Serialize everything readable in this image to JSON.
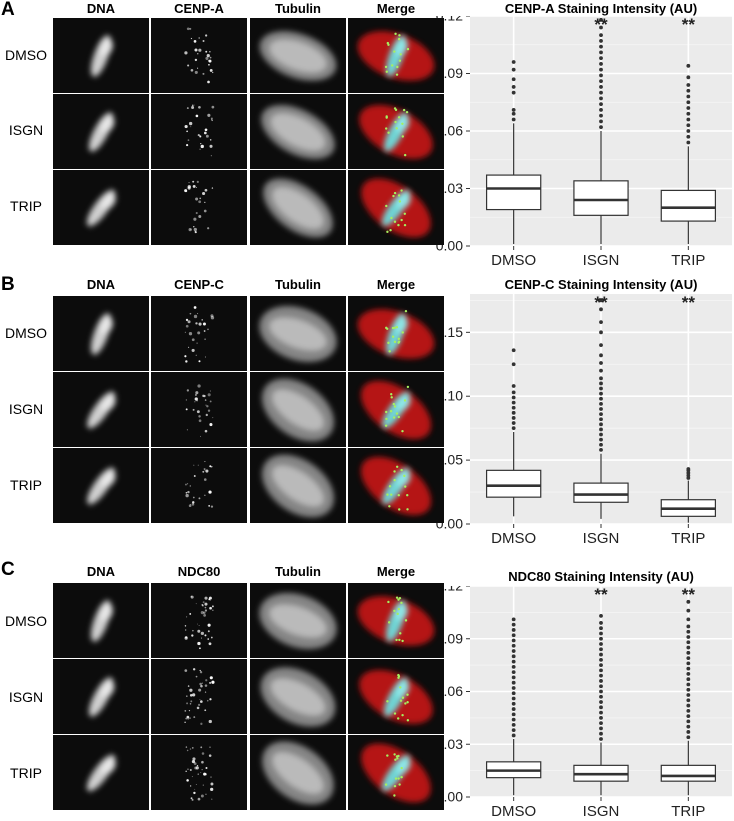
{
  "column_headers": [
    "DNA",
    "Tubulin",
    "Merge"
  ],
  "row_labels": [
    "DMSO",
    "ISGN",
    "TRIP"
  ],
  "panels": [
    {
      "letter": "A",
      "marker": "CENP-A",
      "chart_data": {
        "type": "box",
        "title": "CENP-A Staining Intensity (AU)",
        "categories": [
          "DMSO",
          "ISGN",
          "TRIP"
        ],
        "ylim": [
          0,
          0.12
        ],
        "yticks": [
          "0.00",
          "0.03",
          "0.06",
          "0.09",
          "0.12"
        ],
        "ytick_values": [
          0,
          0.03,
          0.06,
          0.09,
          0.12
        ],
        "grid": true,
        "boxes": [
          {
            "q1": 0.019,
            "median": 0.03,
            "q3": 0.037,
            "whisker_low": 0.001,
            "whisker_high": 0.064,
            "outliers": [
              0.066,
              0.069,
              0.071,
              0.08,
              0.083,
              0.087,
              0.092,
              0.096
            ]
          },
          {
            "q1": 0.016,
            "median": 0.024,
            "q3": 0.034,
            "whisker_low": 0.001,
            "whisker_high": 0.06,
            "outliers": [
              0.062,
              0.065,
              0.068,
              0.071,
              0.074,
              0.077,
              0.08,
              0.083,
              0.086,
              0.089,
              0.092,
              0.095,
              0.098,
              0.101,
              0.104,
              0.107,
              0.11,
              0.114,
              0.118
            ]
          },
          {
            "q1": 0.013,
            "median": 0.02,
            "q3": 0.029,
            "whisker_low": 0.001,
            "whisker_high": 0.052,
            "outliers": [
              0.054,
              0.057,
              0.06,
              0.063,
              0.066,
              0.069,
              0.072,
              0.075,
              0.078,
              0.081,
              0.084,
              0.088,
              0.094
            ]
          }
        ],
        "annotations": [
          "",
          "**",
          "**"
        ]
      }
    },
    {
      "letter": "B",
      "marker": "CENP-C",
      "chart_data": {
        "type": "box",
        "title": "CENP-C Staining Intensity (AU)",
        "categories": [
          "DMSO",
          "ISGN",
          "TRIP"
        ],
        "ylim": [
          0,
          0.18
        ],
        "yticks": [
          "0.00",
          "0.05",
          "0.10",
          "0.15"
        ],
        "ytick_values": [
          0,
          0.05,
          0.1,
          0.15
        ],
        "grid": true,
        "boxes": [
          {
            "q1": 0.021,
            "median": 0.03,
            "q3": 0.042,
            "whisker_low": 0.006,
            "whisker_high": 0.072,
            "outliers": [
              0.075,
              0.079,
              0.083,
              0.087,
              0.091,
              0.095,
              0.099,
              0.103,
              0.108,
              0.125,
              0.136
            ]
          },
          {
            "q1": 0.017,
            "median": 0.023,
            "q3": 0.032,
            "whisker_low": 0.004,
            "whisker_high": 0.055,
            "outliers": [
              0.058,
              0.062,
              0.066,
              0.07,
              0.074,
              0.078,
              0.082,
              0.086,
              0.09,
              0.094,
              0.098,
              0.102,
              0.106,
              0.11,
              0.114,
              0.12,
              0.126,
              0.132,
              0.14,
              0.15,
              0.158,
              0.168,
              0.175
            ]
          },
          {
            "q1": 0.006,
            "median": 0.012,
            "q3": 0.019,
            "whisker_low": 0.001,
            "whisker_high": 0.034,
            "outliers": [
              0.036,
              0.038,
              0.04,
              0.042,
              0.043
            ]
          }
        ],
        "annotations": [
          "",
          "**",
          "**"
        ]
      }
    },
    {
      "letter": "C",
      "marker": "NDC80",
      "chart_data": {
        "type": "box",
        "title": "NDC80 Staining Intensity (AU)",
        "categories": [
          "DMSO",
          "ISGN",
          "TRIP"
        ],
        "ylim": [
          0,
          0.12
        ],
        "yticks": [
          "0.00",
          "0.03",
          "0.06",
          "0.09",
          "0.12"
        ],
        "ytick_values": [
          0,
          0.03,
          0.06,
          0.09,
          0.12
        ],
        "grid": true,
        "boxes": [
          {
            "q1": 0.011,
            "median": 0.015,
            "q3": 0.02,
            "whisker_low": 0.001,
            "whisker_high": 0.033,
            "outliers": [
              0.035,
              0.038,
              0.041,
              0.044,
              0.047,
              0.05,
              0.053,
              0.056,
              0.059,
              0.062,
              0.065,
              0.068,
              0.071,
              0.074,
              0.077,
              0.08,
              0.083,
              0.086,
              0.089,
              0.092,
              0.095,
              0.098,
              0.101
            ]
          },
          {
            "q1": 0.009,
            "median": 0.013,
            "q3": 0.018,
            "whisker_low": 0.001,
            "whisker_high": 0.031,
            "outliers": [
              0.033,
              0.036,
              0.039,
              0.042,
              0.045,
              0.048,
              0.051,
              0.054,
              0.057,
              0.06,
              0.063,
              0.066,
              0.069,
              0.072,
              0.075,
              0.078,
              0.081,
              0.084,
              0.087,
              0.09,
              0.093,
              0.096,
              0.099,
              0.103
            ]
          },
          {
            "q1": 0.009,
            "median": 0.012,
            "q3": 0.018,
            "whisker_low": 0.001,
            "whisker_high": 0.032,
            "outliers": [
              0.034,
              0.037,
              0.04,
              0.043,
              0.046,
              0.049,
              0.052,
              0.055,
              0.058,
              0.061,
              0.064,
              0.067,
              0.07,
              0.073,
              0.076,
              0.079,
              0.082,
              0.085,
              0.088,
              0.091,
              0.094,
              0.097,
              0.101,
              0.106,
              0.111
            ]
          }
        ],
        "annotations": [
          "",
          "**",
          "**"
        ]
      }
    }
  ]
}
